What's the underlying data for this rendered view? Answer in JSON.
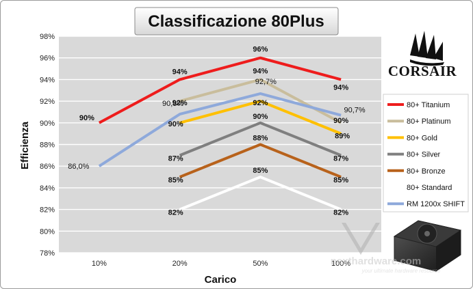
{
  "brand": {
    "name": "CORSAIR",
    "logo_icon": "corsair-sails-logo-icon",
    "product_icon": "psu-unit-image"
  },
  "watermark": {
    "name": "nexthardware.com",
    "tagline": "your ultimate hardware resource"
  },
  "chart_data": {
    "type": "line",
    "title": "Classificazione 80Plus",
    "xlabel": "Carico",
    "ylabel": "Efficienza",
    "categories": [
      "10%",
      "20%",
      "50%",
      "100%"
    ],
    "ylim": [
      78,
      98
    ],
    "yticks": [
      "78%",
      "80%",
      "82%",
      "84%",
      "86%",
      "88%",
      "90%",
      "92%",
      "94%",
      "96%",
      "98%"
    ],
    "grid": true,
    "legend_position": "right",
    "series": [
      {
        "name": "80+ Titanium",
        "color": "#ee1c1c",
        "values": [
          90,
          94,
          96,
          94
        ],
        "labels": [
          "90%",
          "94%",
          "96%",
          "94%"
        ]
      },
      {
        "name": "80+ Platinum",
        "color": "#c9bd9c",
        "values": [
          null,
          92,
          94,
          90
        ],
        "labels": [
          "",
          "92%",
          "94%",
          "90%"
        ]
      },
      {
        "name": "80+ Gold",
        "color": "#ffc000",
        "values": [
          null,
          90,
          92,
          89
        ],
        "labels": [
          "",
          "90%",
          "92%",
          "89%"
        ]
      },
      {
        "name": "80+ Silver",
        "color": "#7f7f7f",
        "values": [
          null,
          87,
          90,
          87
        ],
        "labels": [
          "",
          "87%",
          "90%",
          "87%"
        ]
      },
      {
        "name": "80+ Bronze",
        "color": "#b8621b",
        "values": [
          null,
          85,
          88,
          85
        ],
        "labels": [
          "",
          "85%",
          "88%",
          "85%"
        ]
      },
      {
        "name": "80+ Standard",
        "color": "#ffffff",
        "values": [
          null,
          82,
          85,
          82
        ],
        "labels": [
          "",
          "82%",
          "85%",
          "82%"
        ]
      },
      {
        "name": "RM 1200x SHIFT",
        "color": "#8ea9db",
        "values": [
          86.0,
          90.8,
          92.7,
          90.7
        ],
        "labels": [
          "86,0%",
          "90,8%",
          "92,7%",
          "90,7%"
        ]
      }
    ]
  }
}
